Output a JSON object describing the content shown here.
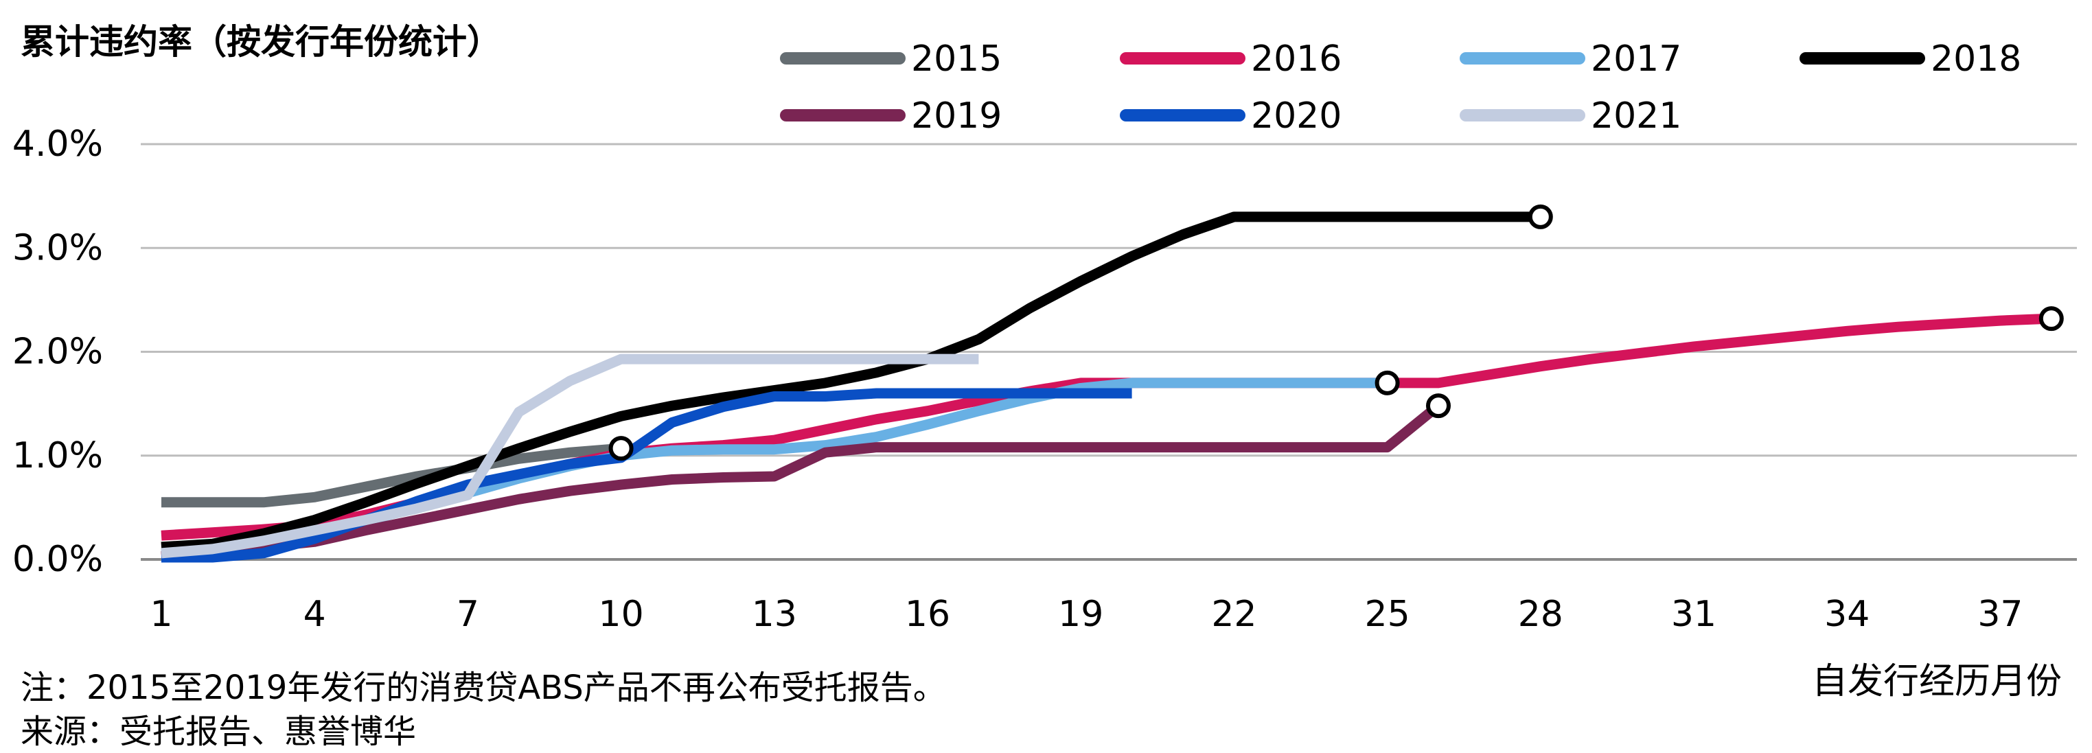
{
  "chart_data": {
    "type": "line",
    "title": "累计违约率（按发行年份统计）",
    "xlabel": "自发行经历月份",
    "ylabel": "",
    "x_ticks": [
      1,
      4,
      7,
      10,
      13,
      16,
      19,
      22,
      25,
      28,
      31,
      34,
      37
    ],
    "xlim": [
      1,
      38.5
    ],
    "y_ticks": [
      "0.0%",
      "1.0%",
      "2.0%",
      "3.0%",
      "4.0%"
    ],
    "ylim": [
      0,
      4.0
    ],
    "y_unit": "%",
    "grid": true,
    "legend_position": "top-right",
    "series": [
      {
        "name": "2015",
        "color": "#656d72",
        "x": [
          1,
          2,
          3,
          4,
          5,
          6,
          7,
          8,
          9,
          10
        ],
        "y": [
          0.55,
          0.55,
          0.55,
          0.6,
          0.7,
          0.8,
          0.88,
          0.97,
          1.03,
          1.07
        ],
        "end_marker": true
      },
      {
        "name": "2016",
        "color": "#d4145a",
        "x": [
          1,
          2,
          3,
          4,
          5,
          6,
          7,
          8,
          9,
          10,
          11,
          12,
          13,
          14,
          15,
          16,
          17,
          18,
          19,
          20,
          21,
          22,
          23,
          24,
          25,
          26,
          27,
          28,
          29,
          30,
          31,
          32,
          33,
          34,
          35,
          36,
          37,
          38
        ],
        "y": [
          0.23,
          0.26,
          0.29,
          0.33,
          0.43,
          0.55,
          0.67,
          0.8,
          0.92,
          1.02,
          1.07,
          1.1,
          1.15,
          1.25,
          1.35,
          1.43,
          1.53,
          1.62,
          1.7,
          1.7,
          1.7,
          1.7,
          1.7,
          1.7,
          1.7,
          1.7,
          1.78,
          1.86,
          1.93,
          1.99,
          2.05,
          2.1,
          2.15,
          2.2,
          2.24,
          2.27,
          2.3,
          2.32
        ],
        "end_marker": true
      },
      {
        "name": "2017",
        "color": "#68b0e4",
        "x": [
          1,
          2,
          3,
          4,
          5,
          6,
          7,
          8,
          9,
          10,
          11,
          12,
          13,
          14,
          15,
          16,
          17,
          18,
          19,
          20,
          21,
          22,
          23,
          24,
          25
        ],
        "y": [
          0.05,
          0.07,
          0.12,
          0.22,
          0.37,
          0.5,
          0.64,
          0.78,
          0.9,
          1.0,
          1.05,
          1.06,
          1.06,
          1.1,
          1.18,
          1.3,
          1.43,
          1.55,
          1.65,
          1.7,
          1.7,
          1.7,
          1.7,
          1.7,
          1.7
        ],
        "end_marker": true
      },
      {
        "name": "2018",
        "color": "#000000",
        "x": [
          1,
          2,
          3,
          4,
          5,
          6,
          7,
          8,
          9,
          10,
          11,
          12,
          13,
          14,
          15,
          16,
          17,
          18,
          19,
          20,
          21,
          22,
          23,
          24,
          25,
          26,
          27,
          28
        ],
        "y": [
          0.12,
          0.15,
          0.25,
          0.38,
          0.55,
          0.73,
          0.9,
          1.07,
          1.23,
          1.38,
          1.48,
          1.56,
          1.63,
          1.7,
          1.8,
          1.93,
          2.12,
          2.42,
          2.68,
          2.92,
          3.13,
          3.3,
          3.3,
          3.3,
          3.3,
          3.3,
          3.3,
          3.3
        ],
        "end_marker": true
      },
      {
        "name": "2019",
        "color": "#7a2553",
        "x": [
          1,
          2,
          3,
          4,
          5,
          6,
          7,
          8,
          9,
          10,
          11,
          12,
          13,
          14,
          15,
          16,
          17,
          18,
          19,
          20,
          21,
          22,
          23,
          24,
          25,
          26
        ],
        "y": [
          0.03,
          0.07,
          0.12,
          0.17,
          0.28,
          0.38,
          0.48,
          0.58,
          0.66,
          0.72,
          0.77,
          0.79,
          0.8,
          1.03,
          1.08,
          1.08,
          1.08,
          1.08,
          1.08,
          1.08,
          1.08,
          1.08,
          1.08,
          1.08,
          1.08,
          1.48
        ],
        "end_marker": true
      },
      {
        "name": "2020",
        "color": "#0a4fc4",
        "x": [
          1,
          2,
          3,
          4,
          5,
          6,
          7,
          8,
          9,
          10,
          11,
          12,
          13,
          14,
          15,
          16,
          17,
          18,
          19,
          20
        ],
        "y": [
          0.02,
          0.02,
          0.06,
          0.2,
          0.38,
          0.56,
          0.72,
          0.82,
          0.92,
          0.98,
          1.32,
          1.47,
          1.57,
          1.57,
          1.6,
          1.6,
          1.6,
          1.6,
          1.6,
          1.6
        ],
        "end_marker": false
      },
      {
        "name": "2021",
        "color": "#c2cce0",
        "x": [
          1,
          2,
          3,
          4,
          5,
          6,
          7,
          8,
          9,
          10,
          11,
          12,
          13,
          14,
          15,
          16,
          17
        ],
        "y": [
          0.06,
          0.1,
          0.18,
          0.28,
          0.38,
          0.49,
          0.62,
          1.42,
          1.72,
          1.93,
          1.93,
          1.93,
          1.93,
          1.93,
          1.93,
          1.93,
          1.93
        ],
        "end_marker": false
      }
    ]
  },
  "notes": {
    "note": "注：2015至2019年发行的消费贷ABS产品不再公布受托报告。",
    "source": "来源：受托报告、惠誉博华"
  }
}
